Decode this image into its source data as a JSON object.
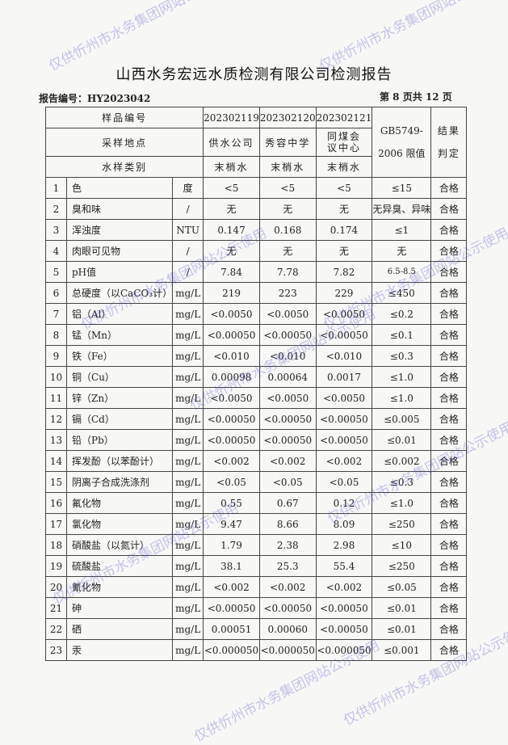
{
  "title": "山西水务宏远水质检测有限公司检测报告",
  "report_no": "报告编号：HY2023042",
  "page_info": "第 8 页共 12 页",
  "header": {
    "sample_no_label": "样品编号",
    "location_label": "采样地点",
    "type_label": "水样类别",
    "samples": [
      {
        "no": "202302119",
        "location": "供水公司",
        "type": "末梢水"
      },
      {
        "no": "202302120",
        "location": "秀容中学",
        "type": "末梢水"
      },
      {
        "no": "202302121",
        "location": "同煤会议中心",
        "type": "末梢水"
      }
    ],
    "limit_label": "GB5749-2006 限值",
    "result_label": "结果判定"
  },
  "rows": [
    [
      "1",
      "色",
      "度",
      "<5",
      "<5",
      "<5",
      "≤15",
      "合格"
    ],
    [
      "2",
      "臭和味",
      "/",
      "无",
      "无",
      "无",
      "无异臭、异味",
      "合格"
    ],
    [
      "3",
      "浑浊度",
      "NTU",
      "0.147",
      "0.168",
      "0.174",
      "≤1",
      "合格"
    ],
    [
      "4",
      "肉眼可见物",
      "/",
      "无",
      "无",
      "无",
      "无",
      "合格"
    ],
    [
      "5",
      "pH值",
      "/",
      "7.84",
      "7.78",
      "7.82",
      "6.5-8.5",
      "合格"
    ],
    [
      "6",
      "总硬度（以CaCO₃计）",
      "mg/L",
      "219",
      "223",
      "229",
      "≤450",
      "合格"
    ],
    [
      "7",
      "铝（Al）",
      "mg/L",
      "<0.0050",
      "<0.0050",
      "<0.0050",
      "≤0.2",
      "合格"
    ],
    [
      "8",
      "锰（Mn）",
      "mg/L",
      "<0.00050",
      "<0.00050",
      "<0.00050",
      "≤0.1",
      "合格"
    ],
    [
      "9",
      "铁（Fe）",
      "mg/L",
      "<0.010",
      "<0.010",
      "<0.010",
      "≤0.3",
      "合格"
    ],
    [
      "10",
      "铜（Cu）",
      "mg/L",
      "0.00098",
      "0.00064",
      "0.0017",
      "≤1.0",
      "合格"
    ],
    [
      "11",
      "锌（Zn）",
      "mg/L",
      "<0.0050",
      "<0.0050",
      "<0.0050",
      "≤1.0",
      "合格"
    ],
    [
      "12",
      "镉（Cd）",
      "mg/L",
      "<0.00050",
      "<0.00050",
      "<0.00050",
      "≤0.005",
      "合格"
    ],
    [
      "13",
      "铅（Pb）",
      "mg/L",
      "<0.00050",
      "<0.00050",
      "<0.00050",
      "≤0.01",
      "合格"
    ],
    [
      "14",
      "挥发酚（以苯酚计）",
      "mg/L",
      "<0.002",
      "<0.002",
      "<0.002",
      "≤0.002",
      "合格"
    ],
    [
      "15",
      "阴离子合成洗涤剂",
      "mg/L",
      "<0.05",
      "<0.05",
      "<0.05",
      "≤0.3",
      "合格"
    ],
    [
      "16",
      "氟化物",
      "mg/L",
      "0.55",
      "0.67",
      "0.12",
      "≤1.0",
      "合格"
    ],
    [
      "17",
      "氯化物",
      "mg/L",
      "9.47",
      "8.66",
      "8.09",
      "≤250",
      "合格"
    ],
    [
      "18",
      "硝酸盐（以氮计）",
      "mg/L",
      "1.79",
      "2.38",
      "2.98",
      "≤10",
      "合格"
    ],
    [
      "19",
      "硫酸盐",
      "mg/L",
      "38.1",
      "25.3",
      "55.4",
      "≤250",
      "合格"
    ],
    [
      "20",
      "氰化物",
      "mg/L",
      "<0.002",
      "<0.002",
      "<0.002",
      "≤0.05",
      "合格"
    ],
    [
      "21",
      "砷",
      "mg/L",
      "<0.00050",
      "<0.00050",
      "<0.00050",
      "≤0.01",
      "合格"
    ],
    [
      "22",
      "硒",
      "mg/L",
      "0.00051",
      "0.00060",
      "<0.00050",
      "≤0.01",
      "合格"
    ],
    [
      "23",
      "汞",
      "mg/L",
      "<0.000050",
      "<0.000050",
      "<0.000050",
      "≤0.001",
      "合格"
    ]
  ],
  "watermark": "仅供忻州市水务集团网站公示使用",
  "watermark_color": "#3c3cc8"
}
